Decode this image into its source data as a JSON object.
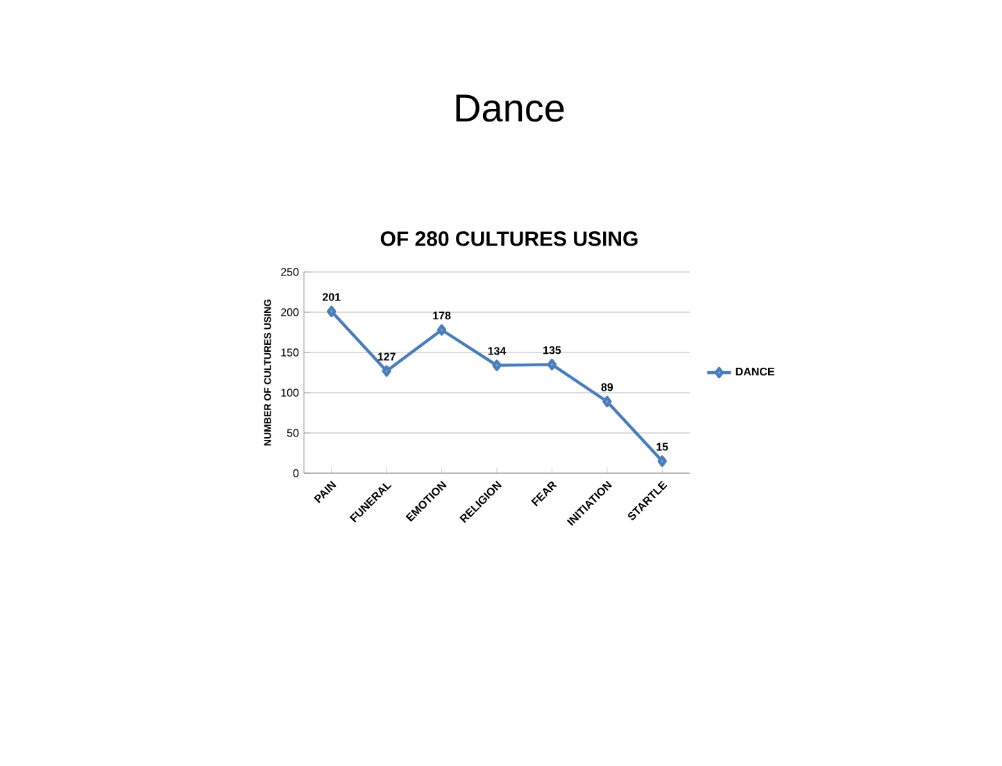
{
  "chart_data": {
    "type": "line",
    "title": "Dance",
    "subtitle": "OF 280 CULTURES USING",
    "ylabel": "NUMBER OF CULTURES USING",
    "categories": [
      "PAIN",
      "FUNERAL",
      "EMOTION",
      "RELIGION",
      "FEAR",
      "INITIATION",
      "STARTLE"
    ],
    "series": [
      {
        "name": "DANCE",
        "color": "#4a7ebb",
        "values": [
          201,
          127,
          178,
          134,
          135,
          89,
          15
        ]
      }
    ],
    "ylim": [
      0,
      250
    ],
    "yticks": [
      0,
      50,
      100,
      150,
      200,
      250
    ],
    "grid": "y",
    "legend": "right",
    "marker": "diamond",
    "line_style": "solid",
    "data_labels": true
  }
}
